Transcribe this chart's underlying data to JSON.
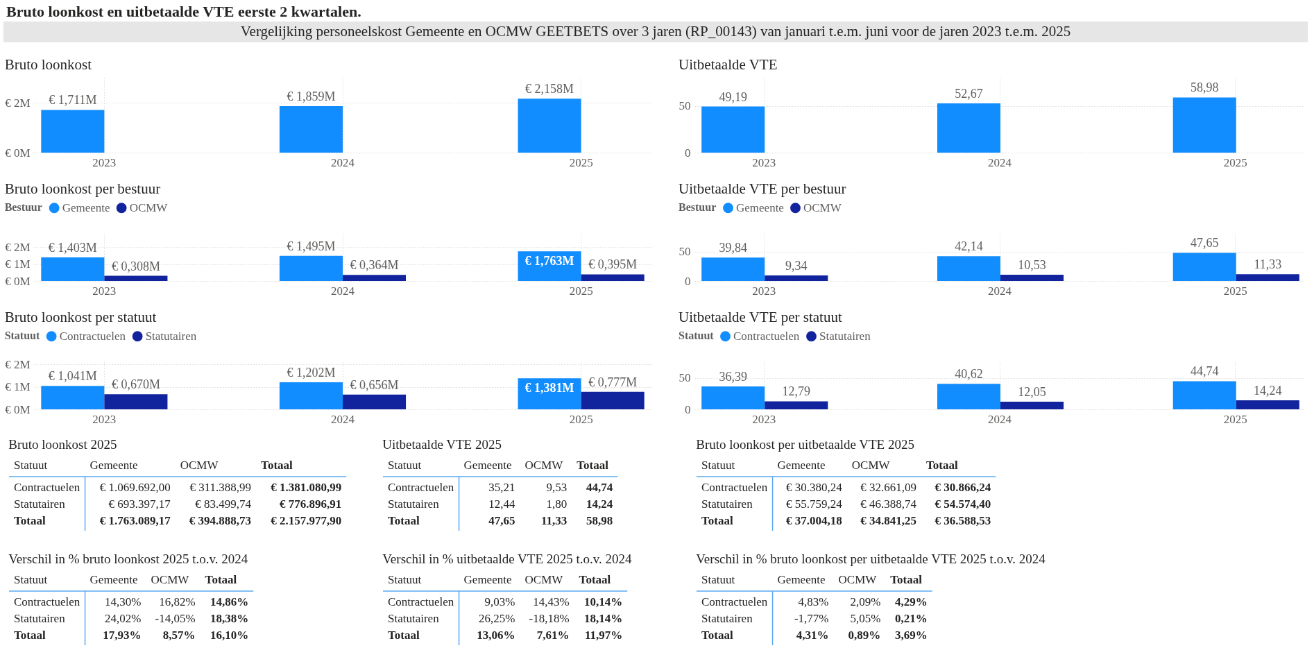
{
  "chart_data": [
    {
      "type": "other",
      "title": "Bruto loonkost en uitbetaalde VTE eerste 2 kwartalen.",
      "subtitle": "Vergelijking personeelskost Gemeente en OCMW GEETBETS over 3 jaren (RP_00143) van januari t.e.m. juni voor de jaren 2023 t.e.m. 2025"
    },
    {
      "type": "bar",
      "title": "Bruto loonkost",
      "categories": [
        "2023",
        "2024",
        "2025"
      ],
      "series": [
        {
          "color": "#118dff",
          "values": [
            1.711,
            1.859,
            2.158
          ],
          "value_labels": [
            "€ 1,711M",
            "€ 1,859M",
            "€ 2,158M"
          ]
        }
      ],
      "ylim": [
        0,
        3
      ],
      "yticks": [
        {
          "value": 0,
          "label": "€ 0M"
        },
        {
          "value": 2,
          "label": "€ 2M"
        }
      ],
      "grid": true
    },
    {
      "type": "bar",
      "title": "Uitbetaalde VTE",
      "categories": [
        "2023",
        "2024",
        "2025"
      ],
      "series": [
        {
          "color": "#118dff",
          "values": [
            49.19,
            52.67,
            58.98
          ],
          "value_labels": [
            "49,19",
            "52,67",
            "58,98"
          ]
        }
      ],
      "ylim": [
        0,
        80
      ],
      "yticks": [
        0,
        50
      ],
      "grid": true
    },
    {
      "type": "bar",
      "title": "Bruto loonkost per bestuur",
      "legend_title": "Bestuur",
      "legend": "top left",
      "categories": [
        "2023",
        "2024",
        "2025"
      ],
      "series": [
        {
          "name": "Gemeente",
          "color": "#118dff",
          "values": [
            1.403,
            1.495,
            1.763
          ],
          "value_labels": [
            "€ 1,403M",
            "€ 1,495M",
            "€ 1,763M"
          ]
        },
        {
          "name": "OCMW",
          "color": "#12239e",
          "values": [
            0.308,
            0.364,
            0.395
          ],
          "value_labels": [
            "€ 0,308M",
            "€ 0,364M",
            "€ 0,395M"
          ]
        }
      ],
      "ylim": [
        0,
        2.8
      ],
      "yticks": [
        {
          "value": 0,
          "label": "€ 0M"
        },
        {
          "value": 1,
          "label": "€ 1M"
        },
        {
          "value": 2,
          "label": "€ 2M"
        }
      ],
      "grid": true
    },
    {
      "type": "bar",
      "title": "Uitbetaalde VTE per bestuur",
      "legend_title": "Bestuur",
      "legend": "top left",
      "categories": [
        "2023",
        "2024",
        "2025"
      ],
      "series": [
        {
          "name": "Gemeente",
          "color": "#118dff",
          "values": [
            39.84,
            42.14,
            47.65
          ],
          "value_labels": [
            "39,84",
            "42,14",
            "47,65"
          ]
        },
        {
          "name": "OCMW",
          "color": "#12239e",
          "values": [
            9.34,
            10.53,
            11.33
          ],
          "value_labels": [
            "9,34",
            "10,53",
            "11,33"
          ]
        }
      ],
      "ylim": [
        0,
        80
      ],
      "yticks": [
        0,
        50
      ],
      "grid": true
    },
    {
      "type": "bar",
      "title": "Bruto loonkost per statuut",
      "legend_title": "Statuut",
      "legend": "top left",
      "categories": [
        "2023",
        "2024",
        "2025"
      ],
      "series": [
        {
          "name": "Contractuelen",
          "color": "#118dff",
          "values": [
            1.041,
            1.202,
            1.381
          ],
          "value_labels": [
            "€ 1,041M",
            "€ 1,202M",
            "€ 1,381M"
          ]
        },
        {
          "name": "Statutairen",
          "color": "#12239e",
          "values": [
            0.67,
            0.656,
            0.777
          ],
          "value_labels": [
            "€ 0,670M",
            "€ 0,656M",
            "€ 0,777M"
          ]
        }
      ],
      "ylim": [
        0,
        2.1
      ],
      "yticks": [
        {
          "value": 0,
          "label": "€ 0M"
        },
        {
          "value": 1,
          "label": "€ 1M"
        },
        {
          "value": 2,
          "label": "€ 2M"
        }
      ],
      "grid": true
    },
    {
      "type": "bar",
      "title": "Uitbetaalde VTE per statuut",
      "legend_title": "Statuut",
      "legend": "top left",
      "categories": [
        "2023",
        "2024",
        "2025"
      ],
      "series": [
        {
          "name": "Contractuelen",
          "color": "#118dff",
          "values": [
            36.39,
            40.62,
            44.74
          ],
          "value_labels": [
            "36,39",
            "40,62",
            "44,74"
          ]
        },
        {
          "name": "Statutairen",
          "color": "#12239e",
          "values": [
            12.79,
            12.05,
            14.24
          ],
          "value_labels": [
            "12,79",
            "12,05",
            "14,24"
          ]
        }
      ],
      "ylim": [
        0,
        75
      ],
      "yticks": [
        0,
        50
      ],
      "grid": true
    },
    {
      "type": "other",
      "title": "Bruto loonkost 2025",
      "ylabel": "Statuut",
      "categories": [
        "Gemeente",
        "OCMW",
        "Totaal"
      ],
      "y_categories": [
        "Contractuelen",
        "Statutairen",
        "Totaal"
      ],
      "cell_labels": [
        [
          "€ 1.069.692,00",
          "€ 311.388,99",
          "€ 1.381.080,99"
        ],
        [
          "€ 693.397,17",
          "€ 83.499,74",
          "€ 776.896,91"
        ],
        [
          "€ 1.763.089,17",
          "€ 394.888,73",
          "€ 2.157.977,90"
        ]
      ]
    },
    {
      "type": "other",
      "title": "Uitbetaalde VTE 2025",
      "ylabel": "Statuut",
      "categories": [
        "Gemeente",
        "OCMW",
        "Totaal"
      ],
      "y_categories": [
        "Contractuelen",
        "Statutairen",
        "Totaal"
      ],
      "cell_labels": [
        [
          "35,21",
          "9,53",
          "44,74"
        ],
        [
          "12,44",
          "1,80",
          "14,24"
        ],
        [
          "47,65",
          "11,33",
          "58,98"
        ]
      ]
    },
    {
      "type": "other",
      "title": "Bruto loonkost per uitbetaalde VTE 2025",
      "ylabel": "Statuut",
      "categories": [
        "Gemeente",
        "OCMW",
        "Totaal"
      ],
      "y_categories": [
        "Contractuelen",
        "Statutairen",
        "Totaal"
      ],
      "cell_labels": [
        [
          "€ 30.380,24",
          "€ 32.661,09",
          "€ 30.866,24"
        ],
        [
          "€ 55.759,24",
          "€ 46.388,74",
          "€ 54.574,40"
        ],
        [
          "€ 37.004,18",
          "€ 34.841,25",
          "€ 36.588,53"
        ]
      ]
    },
    {
      "type": "other",
      "title": "Verschil in % bruto loonkost 2025 t.o.v. 2024",
      "ylabel": "Statuut",
      "categories": [
        "Gemeente",
        "OCMW",
        "Totaal"
      ],
      "y_categories": [
        "Contractuelen",
        "Statutairen",
        "Totaal"
      ],
      "cell_labels": [
        [
          "14,30%",
          "16,82%",
          "14,86%"
        ],
        [
          "24,02%",
          "-14,05%",
          "18,38%"
        ],
        [
          "17,93%",
          "8,57%",
          "16,10%"
        ]
      ]
    },
    {
      "type": "other",
      "title": "Verschil in % uitbetaalde VTE 2025 t.o.v. 2024",
      "ylabel": "Statuut",
      "categories": [
        "Gemeente",
        "OCMW",
        "Totaal"
      ],
      "y_categories": [
        "Contractuelen",
        "Statutairen",
        "Totaal"
      ],
      "cell_labels": [
        [
          "9,03%",
          "14,43%",
          "10,14%"
        ],
        [
          "26,25%",
          "-18,18%",
          "18,14%"
        ],
        [
          "13,06%",
          "7,61%",
          "11,97%"
        ]
      ]
    },
    {
      "type": "other",
      "title": "Verschil in % bruto loonkost per uitbetaalde VTE 2025 t.o.v. 2024",
      "ylabel": "Statuut",
      "categories": [
        "Gemeente",
        "OCMW",
        "Totaal"
      ],
      "y_categories": [
        "Contractuelen",
        "Statutairen",
        "Totaal"
      ],
      "cell_labels": [
        [
          "4,83%",
          "2,09%",
          "4,29%"
        ],
        [
          "-1,77%",
          "5,05%",
          "0,21%"
        ],
        [
          "4,31%",
          "0,89%",
          "3,69%"
        ]
      ]
    }
  ]
}
